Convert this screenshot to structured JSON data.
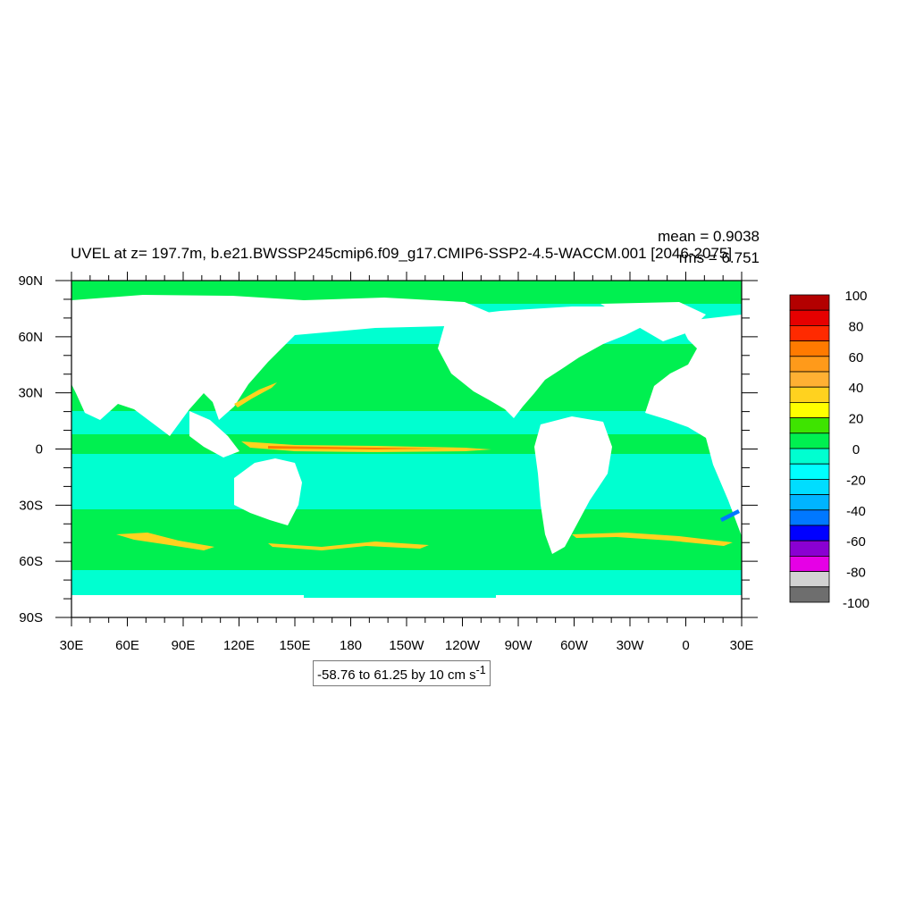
{
  "chart_data": {
    "type": "heatmap",
    "title": "UVEL at z= 197.7m, b.e21.BWSSP245cmip6.f09_g17.CMIP6-SSP2-4.5-WACCM.001 [2046-2075]",
    "stats": {
      "mean": "mean = 0.9038",
      "rms": "rms = 6.751"
    },
    "x_tick_labels": [
      "30E",
      "60E",
      "90E",
      "120E",
      "150E",
      "180",
      "150W",
      "120W",
      "90W",
      "60W",
      "30W",
      "0",
      "30E"
    ],
    "y_tick_labels": [
      "90N",
      "60N",
      "30N",
      "0",
      "30S",
      "60S",
      "90S"
    ],
    "xlim": [
      30,
      390
    ],
    "ylim": [
      -90,
      90
    ],
    "contour_info": "-58.76 to 61.25 by 10 cm s",
    "contour_unit_exp": "-1",
    "colorbar": {
      "labels": [
        "100",
        "80",
        "60",
        "40",
        "20",
        "0",
        "-20",
        "-40",
        "-60",
        "-80",
        "-100"
      ],
      "colors": [
        "#b30000",
        "#e60000",
        "#ff2a00",
        "#ff7a00",
        "#ff9a1a",
        "#ffb033",
        "#ffd21f",
        "#ffff00",
        "#3ee400",
        "#00f050",
        "#00ffd0",
        "#00ffff",
        "#00ddff",
        "#00b4ff",
        "#0078ff",
        "#0000ff",
        "#8a00d2",
        "#e600e6",
        "#d2d2d2",
        "#6e6e6e"
      ]
    },
    "colors": {
      "land": "#ffffff",
      "flow_weak_pos": "#00f050",
      "flow_weak_neg": "#00ffd0",
      "jet": "#ffd21f",
      "jet_core": "#ff7a00"
    }
  }
}
